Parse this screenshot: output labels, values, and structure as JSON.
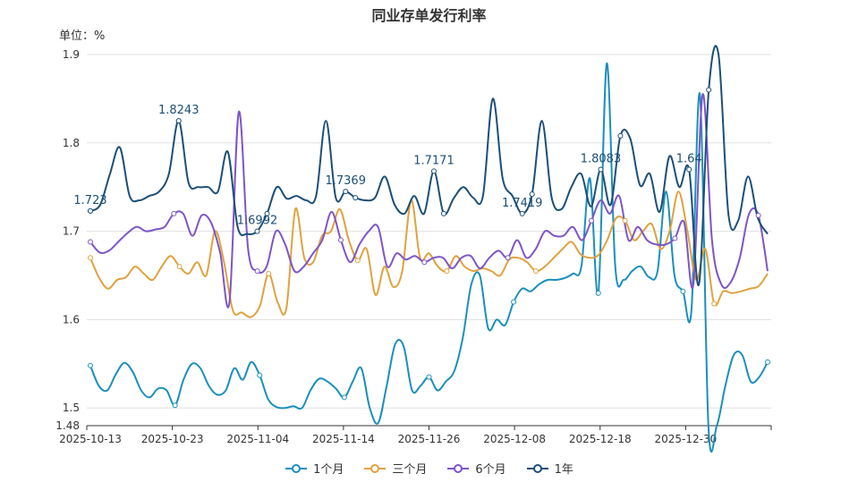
{
  "chart_data": {
    "type": "line",
    "title": "同业存单发行利率",
    "unit_label": "单位：%",
    "xlabel": "",
    "ylabel": "",
    "ylim": [
      1.48,
      1.9
    ],
    "y_ticks": [
      "1.48",
      "1.5",
      "1.6",
      "1.7",
      "1.8",
      "1.9"
    ],
    "x_ticks": [
      "2025-10-13",
      "2025-10-23",
      "2025-11-04",
      "2025-11-14",
      "2025-11-26",
      "2025-12-08",
      "2025-12-18",
      "2025-12-30"
    ],
    "grid": "horizontal",
    "legend_position": "bottom",
    "series": [
      {
        "name": "1个月",
        "color": "#1b8fbd",
        "values": [
          1.548,
          1.525,
          1.52,
          1.538,
          1.551,
          1.541,
          1.52,
          1.512,
          1.522,
          1.52,
          1.503,
          1.532,
          1.55,
          1.545,
          1.525,
          1.515,
          1.52,
          1.545,
          1.532,
          1.552,
          1.537,
          1.51,
          1.501,
          1.5,
          1.502,
          1.5,
          1.52,
          1.533,
          1.53,
          1.522,
          1.512,
          1.53,
          1.545,
          1.5,
          1.483,
          1.525,
          1.572,
          1.57,
          1.52,
          1.525,
          1.535,
          1.52,
          1.53,
          1.542,
          1.58,
          1.64,
          1.65,
          1.59,
          1.6,
          1.594,
          1.62,
          1.635,
          1.632,
          1.64,
          1.645,
          1.645,
          1.647,
          1.652,
          1.66,
          1.76,
          1.63,
          1.89,
          1.66,
          1.645,
          1.655,
          1.66,
          1.648,
          1.655,
          1.745,
          1.65,
          1.632,
          1.61,
          1.855,
          1.48,
          1.48,
          1.525,
          1.56,
          1.56,
          1.53,
          1.535,
          1.552
        ]
      },
      {
        "name": "三个月",
        "color": "#e0a23e",
        "values": [
          1.67,
          1.647,
          1.635,
          1.645,
          1.648,
          1.66,
          1.652,
          1.645,
          1.66,
          1.672,
          1.66,
          1.652,
          1.665,
          1.65,
          1.7,
          1.665,
          1.61,
          1.608,
          1.603,
          1.615,
          1.652,
          1.62,
          1.613,
          1.725,
          1.67,
          1.665,
          1.695,
          1.7,
          1.725,
          1.69,
          1.667,
          1.68,
          1.628,
          1.66,
          1.637,
          1.655,
          1.735,
          1.67,
          1.675,
          1.66,
          1.655,
          1.672,
          1.66,
          1.655,
          1.658,
          1.655,
          1.65,
          1.668,
          1.67,
          1.665,
          1.655,
          1.66,
          1.67,
          1.68,
          1.688,
          1.674,
          1.67,
          1.673,
          1.69,
          1.715,
          1.712,
          1.69,
          1.7,
          1.708,
          1.68,
          1.7,
          1.745,
          1.7,
          1.645,
          1.68,
          1.618,
          1.632,
          1.63,
          1.632,
          1.635,
          1.638,
          1.652
        ]
      },
      {
        "name": "6个月",
        "color": "#7e55c7",
        "values": [
          1.688,
          1.676,
          1.678,
          1.688,
          1.698,
          1.705,
          1.7,
          1.702,
          1.705,
          1.72,
          1.72,
          1.695,
          1.718,
          1.71,
          1.675,
          1.62,
          1.835,
          1.68,
          1.655,
          1.66,
          1.7,
          1.685,
          1.655,
          1.66,
          1.675,
          1.69,
          1.722,
          1.69,
          1.665,
          1.685,
          1.7,
          1.705,
          1.66,
          1.675,
          1.668,
          1.672,
          1.665,
          1.67,
          1.67,
          1.658,
          1.67,
          1.672,
          1.658,
          1.67,
          1.678,
          1.67,
          1.69,
          1.67,
          1.68,
          1.7,
          1.695,
          1.695,
          1.705,
          1.69,
          1.712,
          1.735,
          1.72,
          1.74,
          1.69,
          1.705,
          1.69,
          1.685,
          1.685,
          1.692,
          1.71,
          1.64,
          1.855,
          1.69,
          1.64,
          1.642,
          1.67,
          1.72,
          1.718,
          1.655
        ]
      },
      {
        "name": "1年",
        "color": "#1c4f78",
        "values": [
          1.723,
          1.73,
          1.765,
          1.795,
          1.74,
          1.735,
          1.74,
          1.745,
          1.765,
          1.825,
          1.755,
          1.75,
          1.75,
          1.745,
          1.79,
          1.705,
          1.697,
          1.7,
          1.72,
          1.75,
          1.737,
          1.74,
          1.735,
          1.74,
          1.825,
          1.738,
          1.745,
          1.738,
          1.735,
          1.738,
          1.762,
          1.73,
          1.72,
          1.74,
          1.72,
          1.768,
          1.72,
          1.737,
          1.75,
          1.738,
          1.74,
          1.85,
          1.76,
          1.74,
          1.72,
          1.742,
          1.825,
          1.738,
          1.725,
          1.75,
          1.765,
          1.728,
          1.77,
          1.73,
          1.808,
          1.805,
          1.752,
          1.765,
          1.722,
          1.785,
          1.75,
          1.77,
          1.64,
          1.86,
          1.9,
          1.72,
          1.712,
          1.762,
          1.715,
          1.697
        ]
      }
    ],
    "annotations": [
      {
        "text": "1.723",
        "series": 3,
        "frac": 0.0
      },
      {
        "text": "1.8243",
        "series": 3,
        "frac": 0.125
      },
      {
        "text": "1.6992",
        "series": 3,
        "frac": 0.253
      },
      {
        "text": "1.7369",
        "series": 3,
        "frac": 0.381
      },
      {
        "text": "1.7171",
        "series": 3,
        "frac": 0.507
      },
      {
        "text": "1.7419",
        "series": 3,
        "frac": 0.632
      },
      {
        "text": "1.8083",
        "series": 3,
        "frac": 0.759
      },
      {
        "text": "1.64",
        "series": 3,
        "frac": 0.884
      }
    ]
  }
}
